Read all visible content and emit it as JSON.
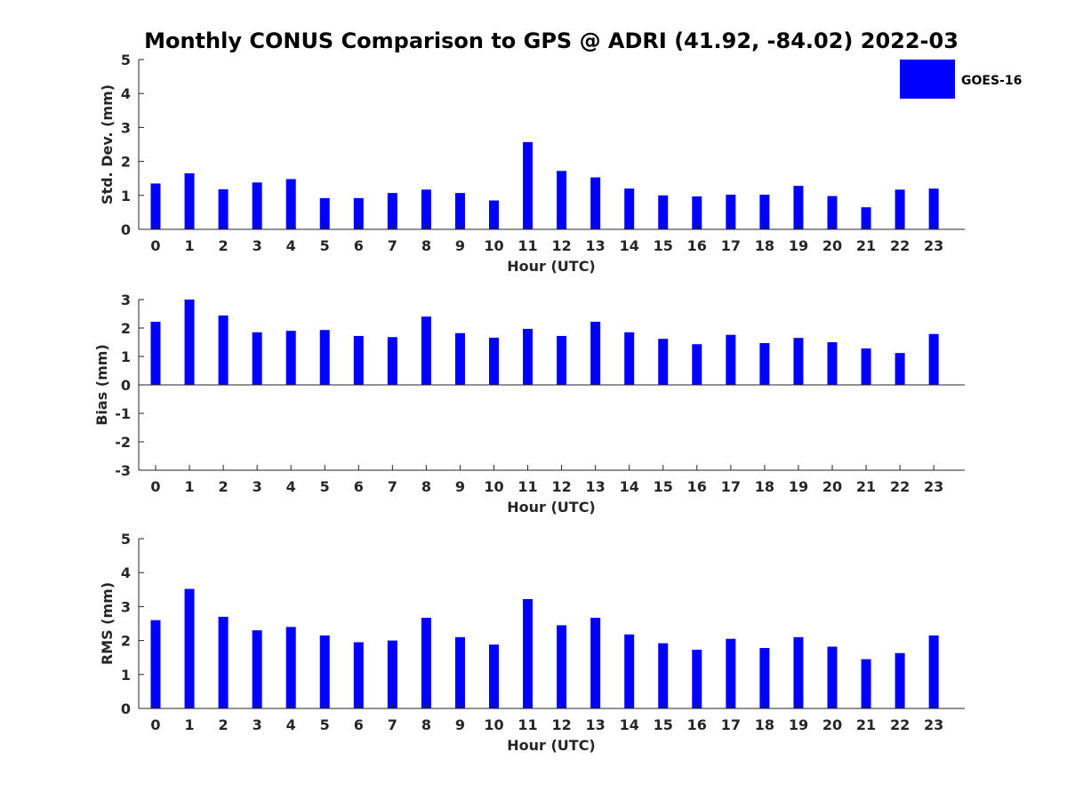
{
  "title": "Monthly CONUS Comparison to GPS @ ADRI (41.92, -84.02) 2022-03",
  "legend": {
    "label": "GOES-16",
    "color": "#0000ff"
  },
  "chart_data": [
    {
      "type": "bar",
      "series_name": "GOES-16",
      "xlabel": "Hour (UTC)",
      "ylabel": "Std. Dev. (mm)",
      "ylim": [
        0,
        5
      ],
      "yticks": [
        0,
        1,
        2,
        3,
        4,
        5
      ],
      "categories": [
        "0",
        "1",
        "2",
        "3",
        "4",
        "5",
        "6",
        "7",
        "8",
        "9",
        "10",
        "11",
        "12",
        "13",
        "14",
        "15",
        "16",
        "17",
        "18",
        "19",
        "20",
        "21",
        "22",
        "23"
      ],
      "values": [
        1.35,
        1.65,
        1.18,
        1.38,
        1.48,
        0.92,
        0.92,
        1.07,
        1.17,
        1.07,
        0.85,
        2.57,
        1.72,
        1.53,
        1.2,
        1.0,
        0.97,
        1.02,
        1.02,
        1.28,
        0.98,
        0.65,
        1.17,
        1.2
      ]
    },
    {
      "type": "bar",
      "series_name": "GOES-16",
      "xlabel": "Hour (UTC)",
      "ylabel": "Bias (mm)",
      "ylim": [
        -3,
        3
      ],
      "yticks": [
        -3,
        -2,
        -1,
        0,
        1,
        2,
        3
      ],
      "categories": [
        "0",
        "1",
        "2",
        "3",
        "4",
        "5",
        "6",
        "7",
        "8",
        "9",
        "10",
        "11",
        "12",
        "13",
        "14",
        "15",
        "16",
        "17",
        "18",
        "19",
        "20",
        "21",
        "22",
        "23"
      ],
      "values": [
        2.22,
        3.0,
        2.44,
        1.85,
        1.9,
        1.93,
        1.72,
        1.68,
        2.4,
        1.82,
        1.66,
        1.97,
        1.72,
        2.22,
        1.85,
        1.62,
        1.43,
        1.76,
        1.47,
        1.65,
        1.5,
        1.28,
        1.12,
        1.79
      ]
    },
    {
      "type": "bar",
      "series_name": "GOES-16",
      "xlabel": "Hour (UTC)",
      "ylabel": "RMS (mm)",
      "ylim": [
        0,
        5
      ],
      "yticks": [
        0,
        1,
        2,
        3,
        4,
        5
      ],
      "categories": [
        "0",
        "1",
        "2",
        "3",
        "4",
        "5",
        "6",
        "7",
        "8",
        "9",
        "10",
        "11",
        "12",
        "13",
        "14",
        "15",
        "16",
        "17",
        "18",
        "19",
        "20",
        "21",
        "22",
        "23"
      ],
      "values": [
        2.6,
        3.52,
        2.7,
        2.3,
        2.4,
        2.15,
        1.95,
        2.0,
        2.67,
        2.1,
        1.88,
        3.22,
        2.45,
        2.67,
        2.18,
        1.92,
        1.73,
        2.05,
        1.78,
        2.1,
        1.82,
        1.45,
        1.63,
        2.15
      ]
    }
  ]
}
